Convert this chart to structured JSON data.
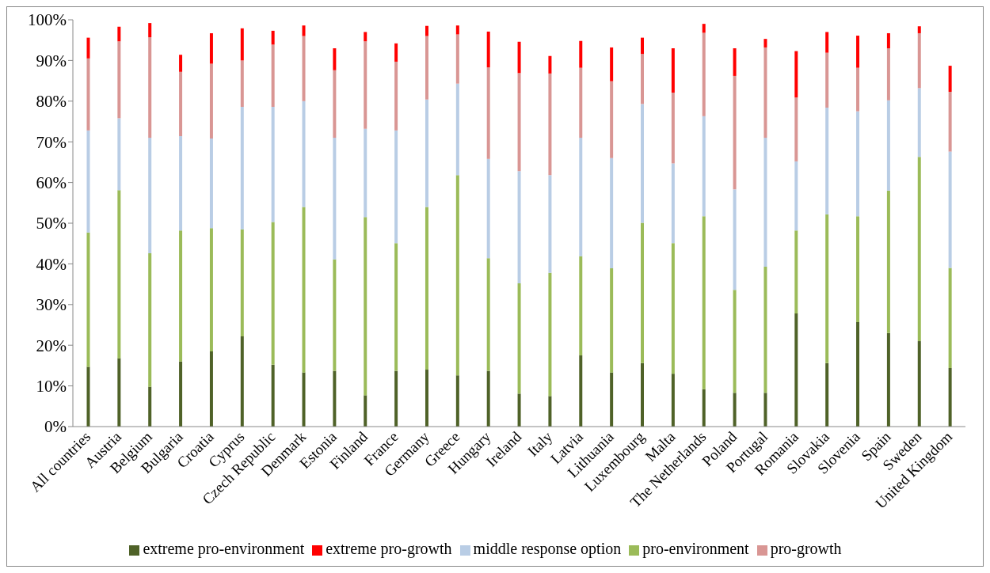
{
  "chart_data": {
    "type": "bar",
    "stacked": true,
    "categories": [
      "All countries",
      "Austria",
      "Belgium",
      "Bulgaria",
      "Croatia",
      "Cyprus",
      "Czech Republic",
      "Denmark",
      "Estonia",
      "Finland",
      "France",
      "Germany",
      "Greece",
      "Hungary",
      "Ireland",
      "Italy",
      "Latvia",
      "Lithuania",
      "Luxembourg",
      "Malta",
      "The Netherlands",
      "Poland",
      "Portugal",
      "Romania",
      "Slovakia",
      "Slovenia",
      "Spain",
      "Sweden",
      "United Kingdom"
    ],
    "series": [
      {
        "name": "extreme pro-environment",
        "color": "#4f6228",
        "values": [
          14.7,
          16.8,
          9.8,
          16.0,
          18.5,
          22.2,
          15.2,
          13.3,
          13.7,
          7.7,
          13.7,
          14.0,
          12.6,
          13.7,
          8.1,
          7.5,
          17.5,
          13.3,
          15.6,
          13.0,
          9.2,
          8.3,
          8.3,
          27.8,
          15.6,
          25.7,
          23.0,
          21.0,
          14.4
        ]
      },
      {
        "name": "pro-environment",
        "color": "#9bbb59",
        "values": [
          33.0,
          41.3,
          32.8,
          32.2,
          30.3,
          26.3,
          35.1,
          40.7,
          27.4,
          43.8,
          31.4,
          40.0,
          49.2,
          27.7,
          27.1,
          30.3,
          24.4,
          25.6,
          34.5,
          32.1,
          42.5,
          25.3,
          31.0,
          20.4,
          36.6,
          26.0,
          35.0,
          45.3,
          24.6
        ]
      },
      {
        "name": "middle response option",
        "color": "#b9cde5",
        "values": [
          25.1,
          17.7,
          28.4,
          23.2,
          22.0,
          30.1,
          28.3,
          26.0,
          29.9,
          21.7,
          27.7,
          26.4,
          22.5,
          24.4,
          27.6,
          24.0,
          29.1,
          27.1,
          29.2,
          19.6,
          24.6,
          24.7,
          31.7,
          17.0,
          26.2,
          25.8,
          22.2,
          16.9,
          28.6
        ]
      },
      {
        "name": "pro-growth",
        "color": "#d99694",
        "values": [
          17.7,
          18.9,
          24.7,
          15.8,
          18.4,
          11.4,
          15.3,
          16.0,
          16.6,
          21.5,
          16.9,
          15.6,
          12.1,
          22.5,
          24.1,
          25.0,
          17.2,
          18.9,
          12.3,
          17.4,
          20.5,
          27.9,
          22.2,
          15.7,
          13.5,
          10.7,
          12.8,
          13.5,
          14.7
        ]
      },
      {
        "name": "extreme pro-growth",
        "color": "#ff0000",
        "values": [
          5.1,
          3.6,
          3.5,
          4.2,
          7.5,
          7.9,
          3.4,
          2.6,
          5.4,
          2.3,
          4.5,
          2.5,
          2.2,
          8.8,
          7.7,
          4.3,
          6.6,
          8.3,
          4.0,
          10.9,
          2.2,
          6.8,
          2.1,
          11.4,
          5.1,
          7.9,
          3.7,
          1.7,
          6.4
        ]
      }
    ],
    "ylim": [
      0,
      100
    ],
    "yticks": [
      {
        "value": 0,
        "label": "0%"
      },
      {
        "value": 10,
        "label": "10%"
      },
      {
        "value": 20,
        "label": "20%"
      },
      {
        "value": 30,
        "label": "30%"
      },
      {
        "value": 40,
        "label": "40%"
      },
      {
        "value": 50,
        "label": "50%"
      },
      {
        "value": 60,
        "label": "60%"
      },
      {
        "value": 70,
        "label": "70%"
      },
      {
        "value": 80,
        "label": "80%"
      },
      {
        "value": 90,
        "label": "90%"
      },
      {
        "value": 100,
        "label": "100%"
      }
    ],
    "legend": "bottom"
  }
}
